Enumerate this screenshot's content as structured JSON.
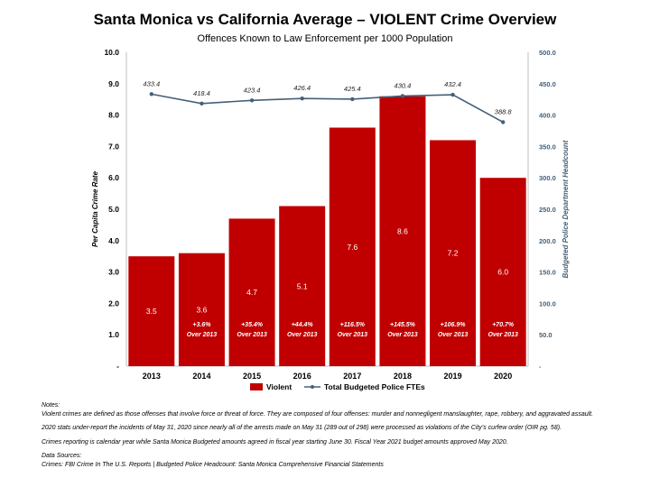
{
  "title": "Santa Monica vs California Average – VIOLENT Crime Overview",
  "subtitle": "Offences Known to Law Enforcement per 1000 Population",
  "chart_data": {
    "type": "bar",
    "categories": [
      "2013",
      "2014",
      "2015",
      "2016",
      "2017",
      "2018",
      "2019",
      "2020"
    ],
    "series": [
      {
        "name": "Violent",
        "type": "bar",
        "axis": "left",
        "color": "#c00000",
        "values": [
          3.5,
          3.6,
          4.7,
          5.1,
          7.6,
          8.6,
          7.2,
          6.0
        ],
        "labels": [
          "3.5",
          "3.6",
          "4.7",
          "5.1",
          "7.6",
          "8.6",
          "7.2",
          "6.0"
        ],
        "change_labels": [
          "",
          "+3.6%",
          "+35.4%",
          "+44.4%",
          "+116.5%",
          "+145.5%",
          "+106.9%",
          "+70.7%"
        ],
        "change_suffix": "Over 2013"
      },
      {
        "name": "Total Budgeted Police FTEs",
        "type": "line",
        "axis": "right",
        "color": "#44607a",
        "values": [
          433.4,
          418.4,
          423.4,
          426.4,
          425.4,
          430.4,
          432.4,
          388.8
        ],
        "labels": [
          "433.4",
          "418.4",
          "423.4",
          "426.4",
          "425.4",
          "430.4",
          "432.4",
          "388.8"
        ]
      }
    ],
    "ylabel": "Per Capita Crime Rate",
    "y2label": "Budgeted Police Department Headcount",
    "ylim": [
      0,
      10
    ],
    "y2lim": [
      0,
      500
    ],
    "yticks": [
      "-",
      "1.0",
      "2.0",
      "3.0",
      "4.0",
      "5.0",
      "6.0",
      "7.0",
      "8.0",
      "9.0",
      "10.0"
    ],
    "y2ticks": [
      "-",
      "50.0",
      "100.0",
      "150.0",
      "200.0",
      "250.0",
      "300.0",
      "350.0",
      "400.0",
      "450.0",
      "500.0"
    ],
    "grid": false,
    "legend": "bottom"
  },
  "notes": {
    "heading": "Notes:",
    "lines": [
      "Violent crimes are defined as those offenses that involve force or threat of force.  They are composed of four offenses: murder and nonnegligent manslaughter, rape, robbery, and aggravated assault.",
      "2020 stats under-report the incidents of May 31, 2020 since nearly all of the arrests made on May 31 (289 out of 298) were processed as violations of the City’s curfew order (OIR pg. 58).",
      "Crimes reporting is calendar year while Santa Monica Budgeted amounts agreed in fiscal year starting June 30.  Fiscal Year 2021 budget amounts approved May 2020."
    ],
    "sources_heading": "Data Sources:",
    "sources": "Crimes: FBI Crime In The U.S. Reports   |   Budgeted Police Headcount: Santa Monica Comprehensive Financial Statements"
  }
}
